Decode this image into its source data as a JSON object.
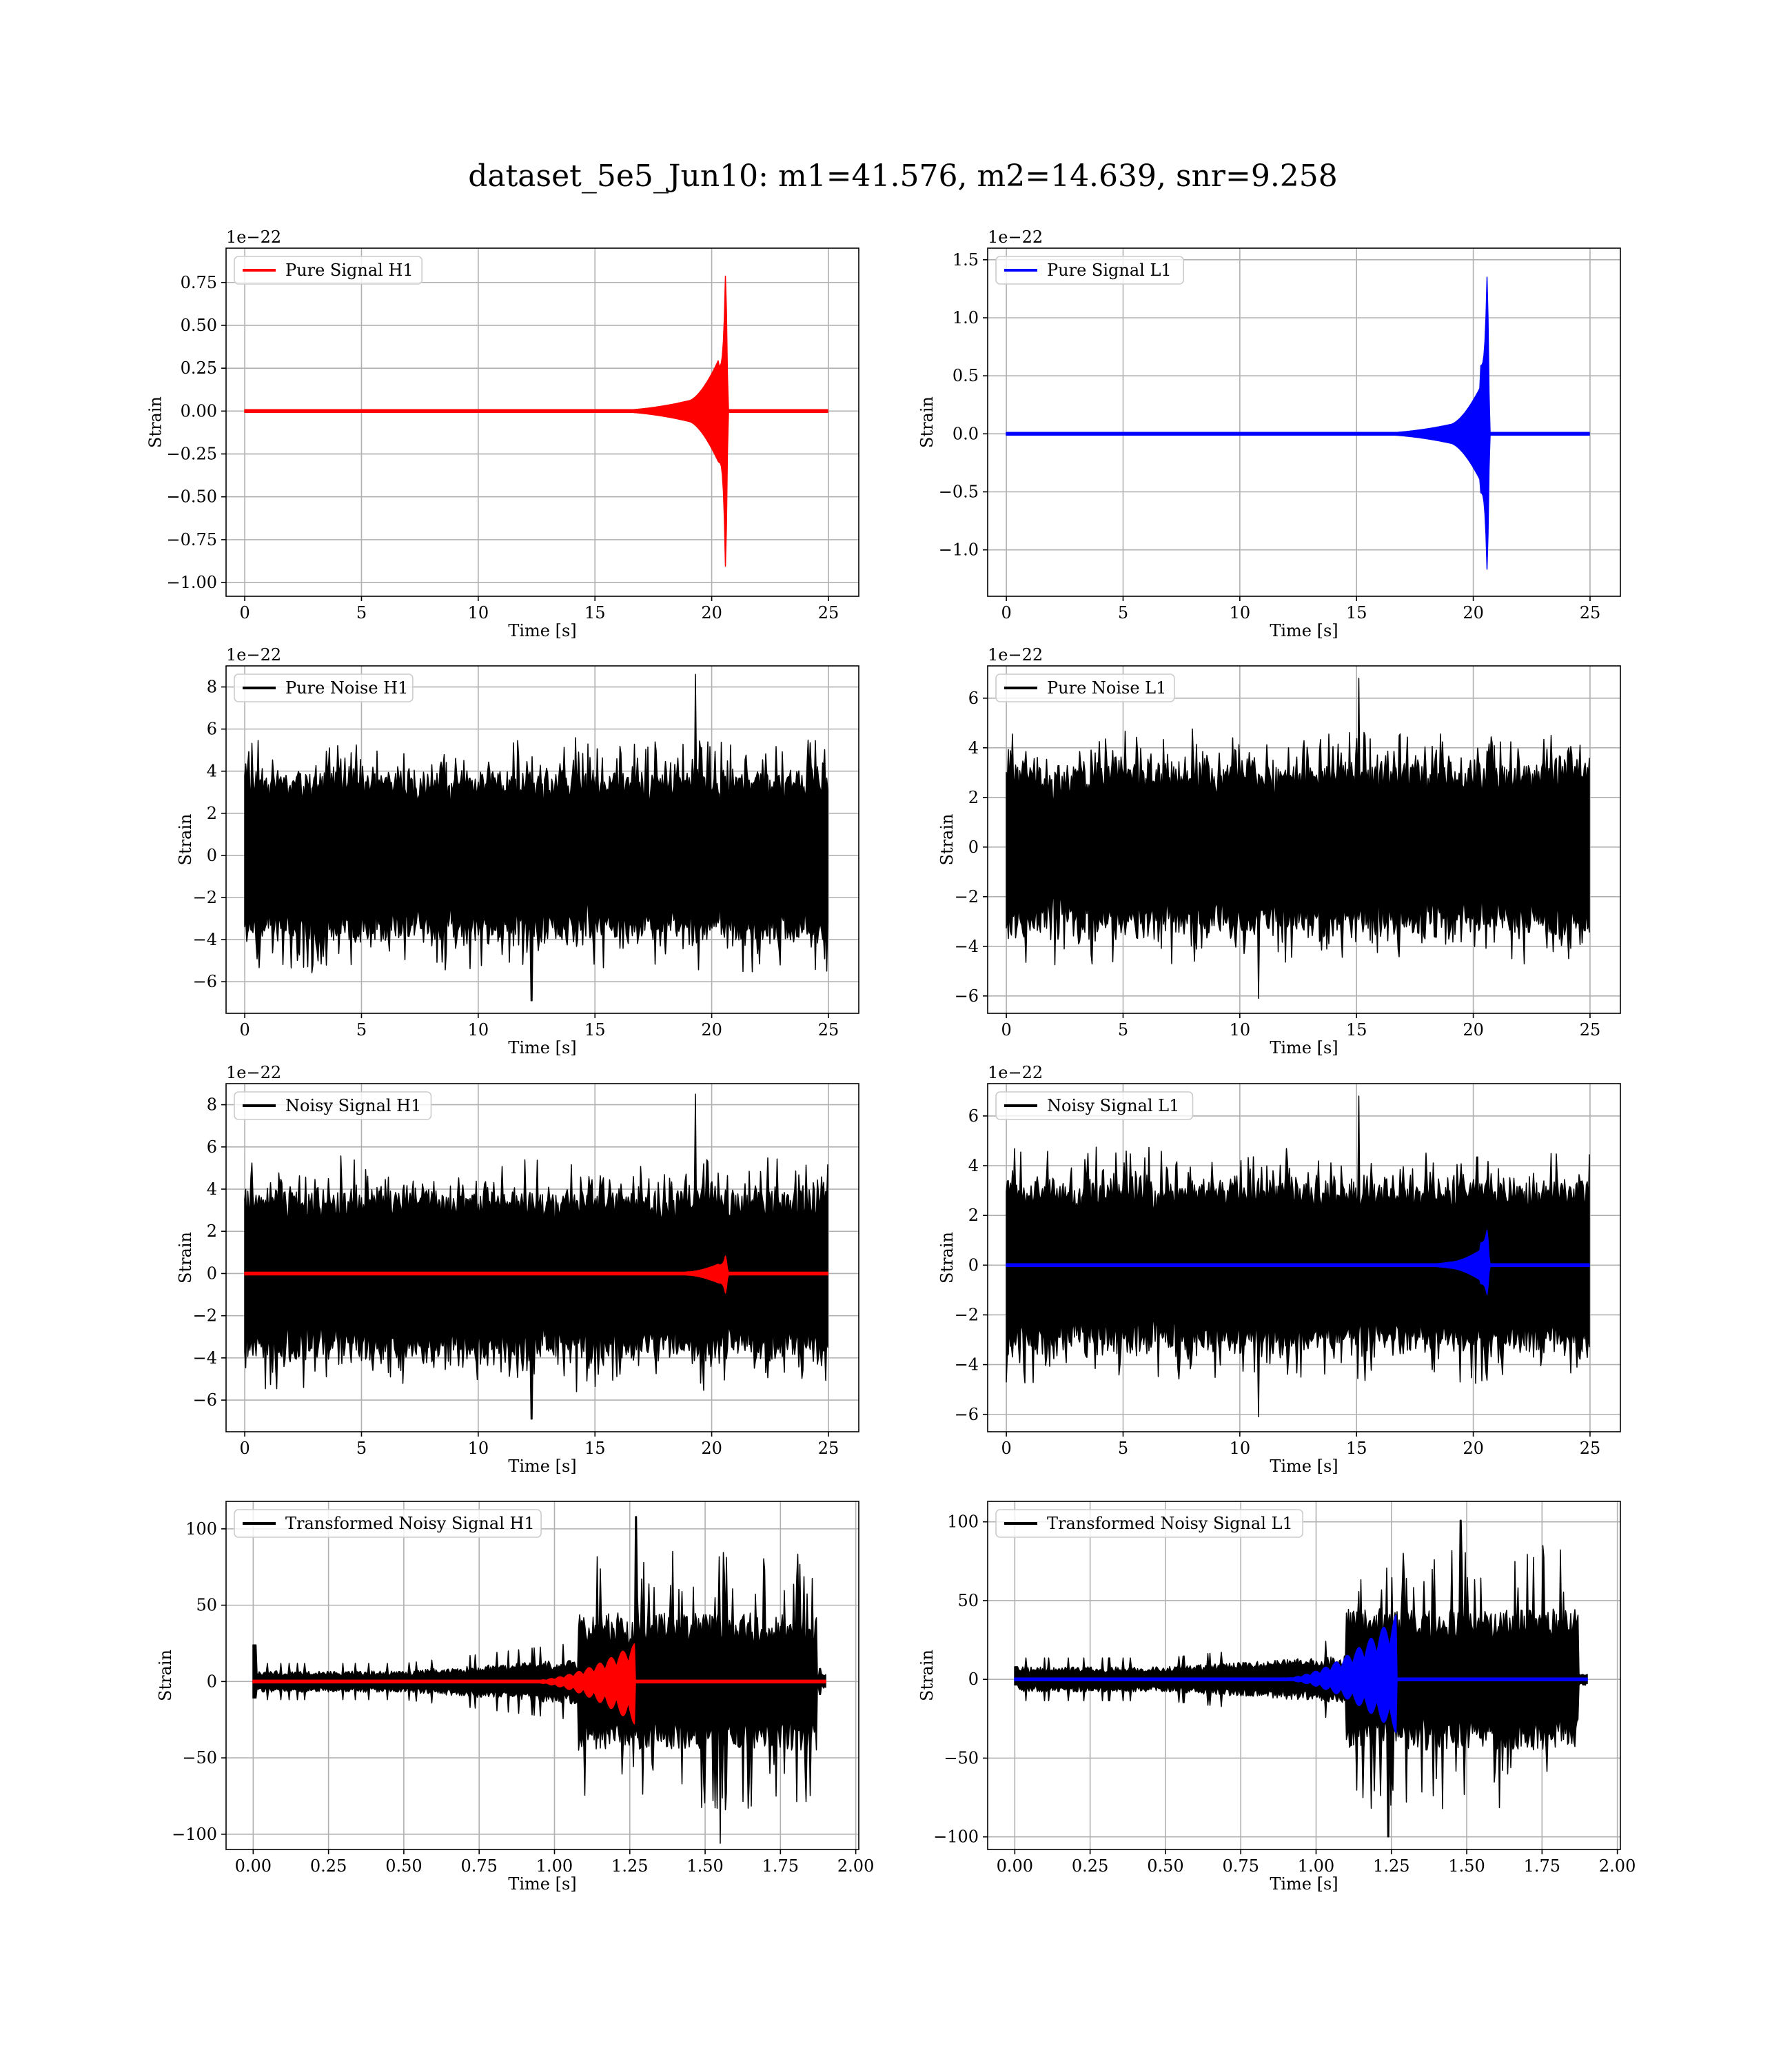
{
  "figure_title": "dataset_5e5_Jun10: m1=41.576, m2=14.639, snr=9.258",
  "chart_data": [
    {
      "id": "pure-signal-h1",
      "type": "line",
      "title": "",
      "xlabel": "Time [s]",
      "ylabel": "Strain",
      "offset_text": "1e−22",
      "xlim": [
        -0.8,
        26.3
      ],
      "ylim": [
        -1.08,
        0.95
      ],
      "xticks": [
        0,
        5,
        10,
        15,
        20,
        25
      ],
      "xtick_labels": [
        "0",
        "5",
        "10",
        "15",
        "20",
        "25"
      ],
      "yticks": [
        -1.0,
        -0.75,
        -0.5,
        -0.25,
        0.0,
        0.25,
        0.5,
        0.75
      ],
      "ytick_labels": [
        "−1.00",
        "−0.75",
        "−0.50",
        "−0.25",
        "0.00",
        "0.25",
        "0.50",
        "0.75"
      ],
      "grid": true,
      "legend_position": "upper-left",
      "series": [
        {
          "name": "Pure Signal H1",
          "color": "#ff0000",
          "kind": "chirp",
          "x_start": 0,
          "x_end": 25,
          "merger_x": 20.6,
          "peak_high": 0.87,
          "peak_low": -1.0,
          "ringdown_x": 20.7,
          "onset_x": 15.0,
          "level_at_19": 0.06,
          "level_at_20_3": 0.3,
          "zero": 0,
          "shown_in_legend": true
        }
      ]
    },
    {
      "id": "pure-signal-l1",
      "type": "line",
      "title": "",
      "xlabel": "Time [s]",
      "ylabel": "Strain",
      "offset_text": "1e−22",
      "xlim": [
        -0.8,
        26.3
      ],
      "ylim": [
        -1.4,
        1.6
      ],
      "xticks": [
        0,
        5,
        10,
        15,
        20,
        25
      ],
      "xtick_labels": [
        "0",
        "5",
        "10",
        "15",
        "20",
        "25"
      ],
      "yticks": [
        -1.0,
        -0.5,
        0.0,
        0.5,
        1.0,
        1.5
      ],
      "ytick_labels": [
        "−1.0",
        "−0.5",
        "0.0",
        "0.5",
        "1.0",
        "1.5"
      ],
      "grid": true,
      "legend_position": "upper-left",
      "series": [
        {
          "name": "Pure Signal L1",
          "color": "#0000ff",
          "kind": "chirp",
          "x_start": 0,
          "x_end": 25,
          "merger_x": 20.6,
          "peak_high": 1.47,
          "peak_low": -1.27,
          "ringdown_x": 20.7,
          "onset_x": 15.0,
          "level_at_19": 0.08,
          "level_at_20_3": 0.4,
          "zero": 0,
          "shown_in_legend": true
        }
      ]
    },
    {
      "id": "pure-noise-h1",
      "type": "line",
      "title": "",
      "xlabel": "Time [s]",
      "ylabel": "Strain",
      "offset_text": "1e−22",
      "xlim": [
        -0.8,
        26.3
      ],
      "ylim": [
        -7.5,
        9.0
      ],
      "xticks": [
        0,
        5,
        10,
        15,
        20,
        25
      ],
      "xtick_labels": [
        "0",
        "5",
        "10",
        "15",
        "20",
        "25"
      ],
      "yticks": [
        -6,
        -4,
        -2,
        0,
        2,
        4,
        6,
        8
      ],
      "ytick_labels": [
        "−6",
        "−4",
        "−2",
        "0",
        "2",
        "4",
        "6",
        "8"
      ],
      "grid": true,
      "legend_position": "upper-left",
      "series": [
        {
          "name": "Pure Noise H1",
          "color": "#000000",
          "kind": "noise",
          "x_start": 0,
          "x_end": 25,
          "band_high": 4.0,
          "band_low": -4.0,
          "max": 8.6,
          "max_x": 19.3,
          "min": -6.9,
          "min_x": 12.3,
          "shown_in_legend": true
        }
      ]
    },
    {
      "id": "pure-noise-l1",
      "type": "line",
      "title": "",
      "xlabel": "Time [s]",
      "ylabel": "Strain",
      "offset_text": "1e−22",
      "xlim": [
        -0.8,
        26.3
      ],
      "ylim": [
        -6.7,
        7.3
      ],
      "xticks": [
        0,
        5,
        10,
        15,
        20,
        25
      ],
      "xtick_labels": [
        "0",
        "5",
        "10",
        "15",
        "20",
        "25"
      ],
      "yticks": [
        -6,
        -4,
        -2,
        0,
        2,
        4,
        6
      ],
      "ytick_labels": [
        "−6",
        "−4",
        "−2",
        "0",
        "2",
        "4",
        "6"
      ],
      "grid": true,
      "legend_position": "upper-left",
      "series": [
        {
          "name": "Pure Noise L1",
          "color": "#000000",
          "kind": "noise",
          "x_start": 0,
          "x_end": 25,
          "band_high": 3.4,
          "band_low": -3.4,
          "max": 6.8,
          "max_x": 15.1,
          "min": -6.1,
          "min_x": 10.8,
          "shown_in_legend": true
        }
      ]
    },
    {
      "id": "noisy-signal-h1",
      "type": "line",
      "title": "",
      "xlabel": "Time [s]",
      "ylabel": "Strain",
      "offset_text": "1e−22",
      "xlim": [
        -0.8,
        26.3
      ],
      "ylim": [
        -7.5,
        9.0
      ],
      "xticks": [
        0,
        5,
        10,
        15,
        20,
        25
      ],
      "xtick_labels": [
        "0",
        "5",
        "10",
        "15",
        "20",
        "25"
      ],
      "yticks": [
        -6,
        -4,
        -2,
        0,
        2,
        4,
        6,
        8
      ],
      "ytick_labels": [
        "−6",
        "−4",
        "−2",
        "0",
        "2",
        "4",
        "6",
        "8"
      ],
      "grid": true,
      "legend_position": "upper-left",
      "series": [
        {
          "name": "Noisy Signal H1",
          "color": "#000000",
          "kind": "noise",
          "x_start": 0,
          "x_end": 25,
          "band_high": 4.0,
          "band_low": -4.0,
          "max": 8.5,
          "max_x": 19.3,
          "min": -6.9,
          "min_x": 12.3,
          "shown_in_legend": true
        },
        {
          "name": "",
          "color": "#ff0000",
          "kind": "chirp",
          "x_start": 0,
          "x_end": 25,
          "merger_x": 20.6,
          "peak_high": 0.9,
          "peak_low": -1.0,
          "ringdown_x": 20.7,
          "onset_x": 17.0,
          "level_at_19": 0.08,
          "level_at_20_3": 0.45,
          "zero": 0,
          "shown_in_legend": false
        }
      ]
    },
    {
      "id": "noisy-signal-l1",
      "type": "line",
      "title": "",
      "xlabel": "Time [s]",
      "ylabel": "Strain",
      "offset_text": "1e−22",
      "xlim": [
        -0.8,
        26.3
      ],
      "ylim": [
        -6.7,
        7.3
      ],
      "xticks": [
        0,
        5,
        10,
        15,
        20,
        25
      ],
      "xtick_labels": [
        "0",
        "5",
        "10",
        "15",
        "20",
        "25"
      ],
      "yticks": [
        -6,
        -4,
        -2,
        0,
        2,
        4,
        6
      ],
      "ytick_labels": [
        "−6",
        "−4",
        "−2",
        "0",
        "2",
        "4",
        "6"
      ],
      "grid": true,
      "legend_position": "upper-left",
      "series": [
        {
          "name": "Noisy Signal L1",
          "color": "#000000",
          "kind": "noise",
          "x_start": 0,
          "x_end": 25,
          "band_high": 3.4,
          "band_low": -3.4,
          "max": 6.8,
          "max_x": 15.1,
          "min": -6.1,
          "min_x": 10.8,
          "shown_in_legend": true
        },
        {
          "name": "",
          "color": "#0000ff",
          "kind": "chirp",
          "x_start": 0,
          "x_end": 25,
          "merger_x": 20.6,
          "peak_high": 1.5,
          "peak_low": -1.25,
          "ringdown_x": 20.7,
          "onset_x": 17.0,
          "level_at_19": 0.12,
          "level_at_20_3": 0.6,
          "zero": 0,
          "shown_in_legend": false
        }
      ]
    },
    {
      "id": "transformed-noisy-signal-h1",
      "type": "line",
      "title": "",
      "xlabel": "Time [s]",
      "ylabel": "Strain",
      "offset_text": "",
      "xlim": [
        -0.09,
        2.01
      ],
      "ylim": [
        -110,
        118
      ],
      "xticks": [
        0,
        0.25,
        0.5,
        0.75,
        1.0,
        1.25,
        1.5,
        1.75,
        2.0
      ],
      "xtick_labels": [
        "0.00",
        "0.25",
        "0.50",
        "0.75",
        "1.00",
        "1.25",
        "1.50",
        "1.75",
        "2.00"
      ],
      "yticks": [
        -100,
        -50,
        0,
        50,
        100
      ],
      "ytick_labels": [
        "−100",
        "−50",
        "0",
        "50",
        "100"
      ],
      "grid": true,
      "legend_position": "upper-left",
      "series": [
        {
          "name": "Transformed Noisy Signal H1",
          "color": "#000000",
          "kind": "whitened",
          "x_start": 0,
          "x_end": 1.9,
          "early_band": 7,
          "mid_band": 15,
          "late_band": 45,
          "jump_x": 1.08,
          "end_x": 1.87,
          "tail_band": 5,
          "start_spike": 24,
          "max": 108,
          "max_x": 1.27,
          "min": -106,
          "min_x": 1.55,
          "shown_in_legend": true
        },
        {
          "name": "",
          "color": "#ff0000",
          "kind": "whitened-chirp",
          "x_start": 0,
          "x_end": 1.9,
          "onset_x": 0.88,
          "merger_x": 1.26,
          "peak_high": 24,
          "peak_low": -27,
          "shown_in_legend": false
        }
      ]
    },
    {
      "id": "transformed-noisy-signal-l1",
      "type": "line",
      "title": "",
      "xlabel": "Time [s]",
      "ylabel": "Strain",
      "offset_text": "",
      "xlim": [
        -0.09,
        2.01
      ],
      "ylim": [
        -108,
        113
      ],
      "xticks": [
        0,
        0.25,
        0.5,
        0.75,
        1.0,
        1.25,
        1.5,
        1.75,
        2.0
      ],
      "xtick_labels": [
        "0.00",
        "0.25",
        "0.50",
        "0.75",
        "1.00",
        "1.25",
        "1.50",
        "1.75",
        "2.00"
      ],
      "yticks": [
        -100,
        -50,
        0,
        50,
        100
      ],
      "ytick_labels": [
        "−100",
        "−50",
        "0",
        "50",
        "100"
      ],
      "grid": true,
      "legend_position": "upper-left",
      "series": [
        {
          "name": "Transformed Noisy Signal L1",
          "color": "#000000",
          "kind": "whitened",
          "x_start": 0,
          "x_end": 1.9,
          "early_band": 8,
          "mid_band": 15,
          "late_band": 45,
          "jump_x": 1.1,
          "end_x": 1.87,
          "tail_band": 4,
          "start_spike": 8,
          "max": 101,
          "max_x": 1.48,
          "min": -100,
          "min_x": 1.24,
          "shown_in_legend": true
        },
        {
          "name": "",
          "color": "#0000ff",
          "kind": "whitened-chirp",
          "x_start": 0,
          "x_end": 1.9,
          "onset_x": 0.85,
          "merger_x": 1.26,
          "peak_high": 40,
          "peak_low": -33,
          "shown_in_legend": false
        }
      ]
    }
  ]
}
